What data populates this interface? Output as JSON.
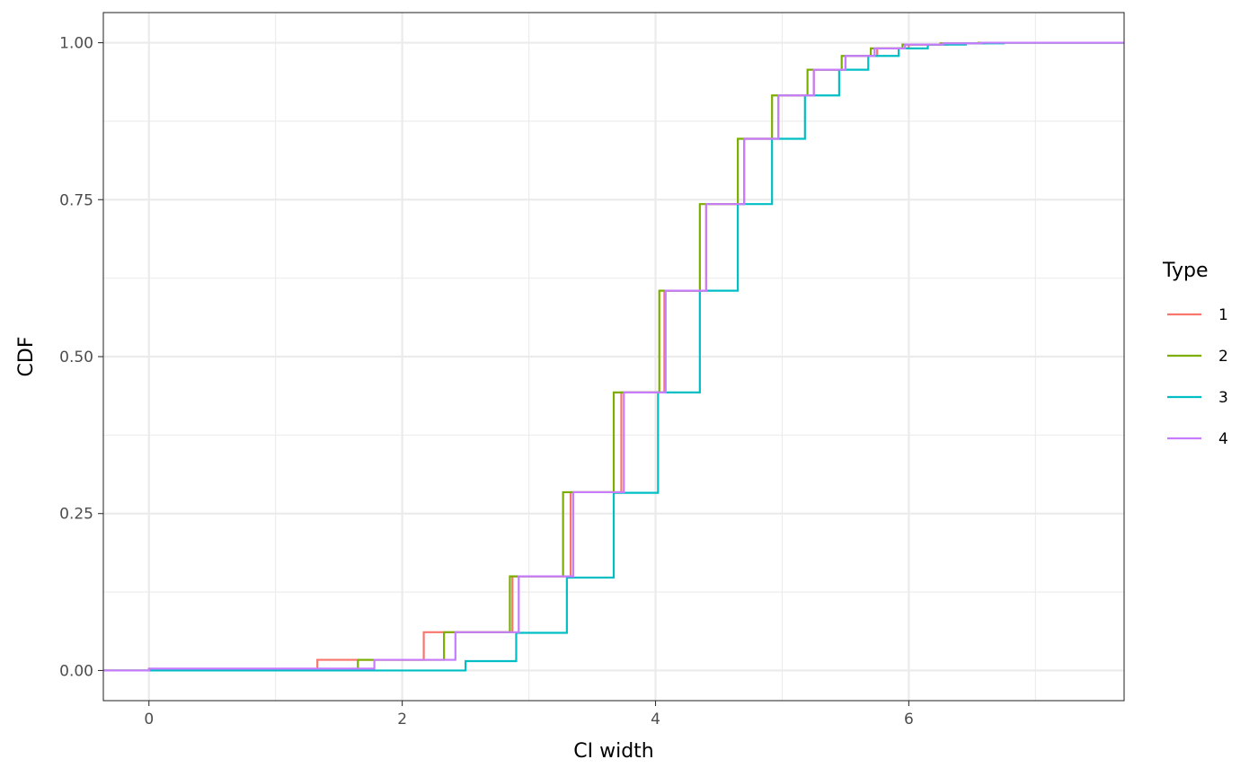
{
  "chart_data": {
    "type": "line",
    "step": true,
    "title": "",
    "xlabel": "CI width",
    "ylabel": "CDF",
    "xlim": [
      -0.36,
      7.7
    ],
    "ylim": [
      -0.048,
      1.048
    ],
    "x_ticks": [
      0,
      2,
      4,
      6
    ],
    "x_tick_labels": [
      "0",
      "2",
      "4",
      "6"
    ],
    "y_ticks": [
      0,
      0.25,
      0.5,
      0.75,
      1.0
    ],
    "y_tick_labels": [
      "0.00",
      "0.25",
      "0.50",
      "0.75",
      "1.00"
    ],
    "grid": true,
    "legend": {
      "title": "Type",
      "position": "right"
    },
    "series": [
      {
        "name": "1",
        "color": "#F8766D",
        "points": [
          [
            -0.36,
            0
          ],
          [
            0,
            0.002
          ],
          [
            1.33,
            0.017
          ],
          [
            2.17,
            0.061
          ],
          [
            2.87,
            0.15
          ],
          [
            3.33,
            0.284
          ],
          [
            3.73,
            0.443
          ],
          [
            4.07,
            0.605
          ],
          [
            4.4,
            0.743
          ],
          [
            4.7,
            0.847
          ],
          [
            4.97,
            0.916
          ],
          [
            5.25,
            0.957
          ],
          [
            5.5,
            0.979
          ],
          [
            5.75,
            0.991
          ],
          [
            6.0,
            0.997
          ],
          [
            6.3,
            0.999
          ],
          [
            6.6,
            1.0
          ],
          [
            7.7,
            1.0
          ]
        ]
      },
      {
        "name": "2",
        "color": "#7CAE00",
        "points": [
          [
            -0.36,
            0
          ],
          [
            0,
            0.002
          ],
          [
            1.65,
            0.017
          ],
          [
            2.33,
            0.061
          ],
          [
            2.85,
            0.15
          ],
          [
            3.27,
            0.284
          ],
          [
            3.67,
            0.443
          ],
          [
            4.03,
            0.605
          ],
          [
            4.35,
            0.743
          ],
          [
            4.65,
            0.847
          ],
          [
            4.92,
            0.916
          ],
          [
            5.2,
            0.957
          ],
          [
            5.47,
            0.979
          ],
          [
            5.7,
            0.991
          ],
          [
            5.95,
            0.997
          ],
          [
            6.25,
            0.999
          ],
          [
            6.55,
            1.0
          ],
          [
            7.7,
            1.0
          ]
        ]
      },
      {
        "name": "3",
        "color": "#00BFC4",
        "points": [
          [
            -0.36,
            0
          ],
          [
            2.5,
            0.015
          ],
          [
            2.9,
            0.06
          ],
          [
            3.3,
            0.148
          ],
          [
            3.67,
            0.283
          ],
          [
            4.02,
            0.443
          ],
          [
            4.35,
            0.605
          ],
          [
            4.65,
            0.743
          ],
          [
            4.92,
            0.847
          ],
          [
            5.18,
            0.916
          ],
          [
            5.45,
            0.957
          ],
          [
            5.68,
            0.979
          ],
          [
            5.92,
            0.991
          ],
          [
            6.15,
            0.997
          ],
          [
            6.45,
            0.999
          ],
          [
            6.75,
            1.0
          ],
          [
            7.7,
            1.0
          ]
        ]
      },
      {
        "name": "4",
        "color": "#C77CFF",
        "points": [
          [
            -0.36,
            0
          ],
          [
            0,
            0.003
          ],
          [
            1.78,
            0.017
          ],
          [
            2.42,
            0.061
          ],
          [
            2.92,
            0.15
          ],
          [
            3.35,
            0.284
          ],
          [
            3.75,
            0.443
          ],
          [
            4.08,
            0.605
          ],
          [
            4.4,
            0.743
          ],
          [
            4.7,
            0.847
          ],
          [
            4.97,
            0.916
          ],
          [
            5.25,
            0.957
          ],
          [
            5.5,
            0.979
          ],
          [
            5.73,
            0.991
          ],
          [
            5.97,
            0.997
          ],
          [
            6.27,
            0.999
          ],
          [
            6.57,
            1.0
          ],
          [
            7.7,
            1.0
          ]
        ]
      }
    ]
  }
}
